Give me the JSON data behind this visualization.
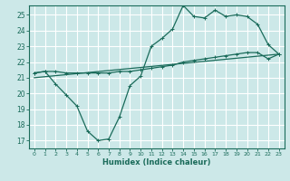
{
  "xlabel": "Humidex (Indice chaleur)",
  "bg_color": "#cce8e8",
  "grid_color": "#ffffff",
  "line_color": "#1a6b5a",
  "xlim": [
    -0.5,
    23.5
  ],
  "ylim": [
    16.5,
    25.6
  ],
  "yticks": [
    17,
    18,
    19,
    20,
    21,
    22,
    23,
    24,
    25
  ],
  "xticks": [
    0,
    1,
    2,
    3,
    4,
    5,
    6,
    7,
    8,
    9,
    10,
    11,
    12,
    13,
    14,
    15,
    16,
    17,
    18,
    19,
    20,
    21,
    22,
    23
  ],
  "line1_x": [
    0,
    1,
    2,
    3,
    4,
    5,
    6,
    7,
    8,
    9,
    10,
    11,
    12,
    13,
    14,
    15,
    16,
    17,
    18,
    19,
    20,
    21,
    22,
    23
  ],
  "line1_y": [
    21.3,
    21.4,
    20.6,
    19.9,
    19.2,
    17.6,
    17.0,
    17.1,
    18.5,
    20.5,
    21.1,
    23.0,
    23.5,
    24.1,
    25.6,
    24.9,
    24.8,
    25.3,
    24.9,
    25.0,
    24.9,
    24.4,
    23.1,
    22.5
  ],
  "line2_x": [
    0,
    1,
    2,
    3,
    4,
    5,
    6,
    7,
    8,
    9,
    10,
    11,
    12,
    13,
    14,
    15,
    16,
    17,
    18,
    19,
    20,
    21,
    22,
    23
  ],
  "line2_y": [
    21.3,
    21.4,
    21.4,
    21.3,
    21.3,
    21.3,
    21.3,
    21.3,
    21.4,
    21.4,
    21.5,
    21.6,
    21.7,
    21.8,
    22.0,
    22.1,
    22.2,
    22.3,
    22.4,
    22.5,
    22.6,
    22.6,
    22.2,
    22.5
  ],
  "line3_x": [
    0,
    23
  ],
  "line3_y": [
    21.0,
    22.5
  ]
}
